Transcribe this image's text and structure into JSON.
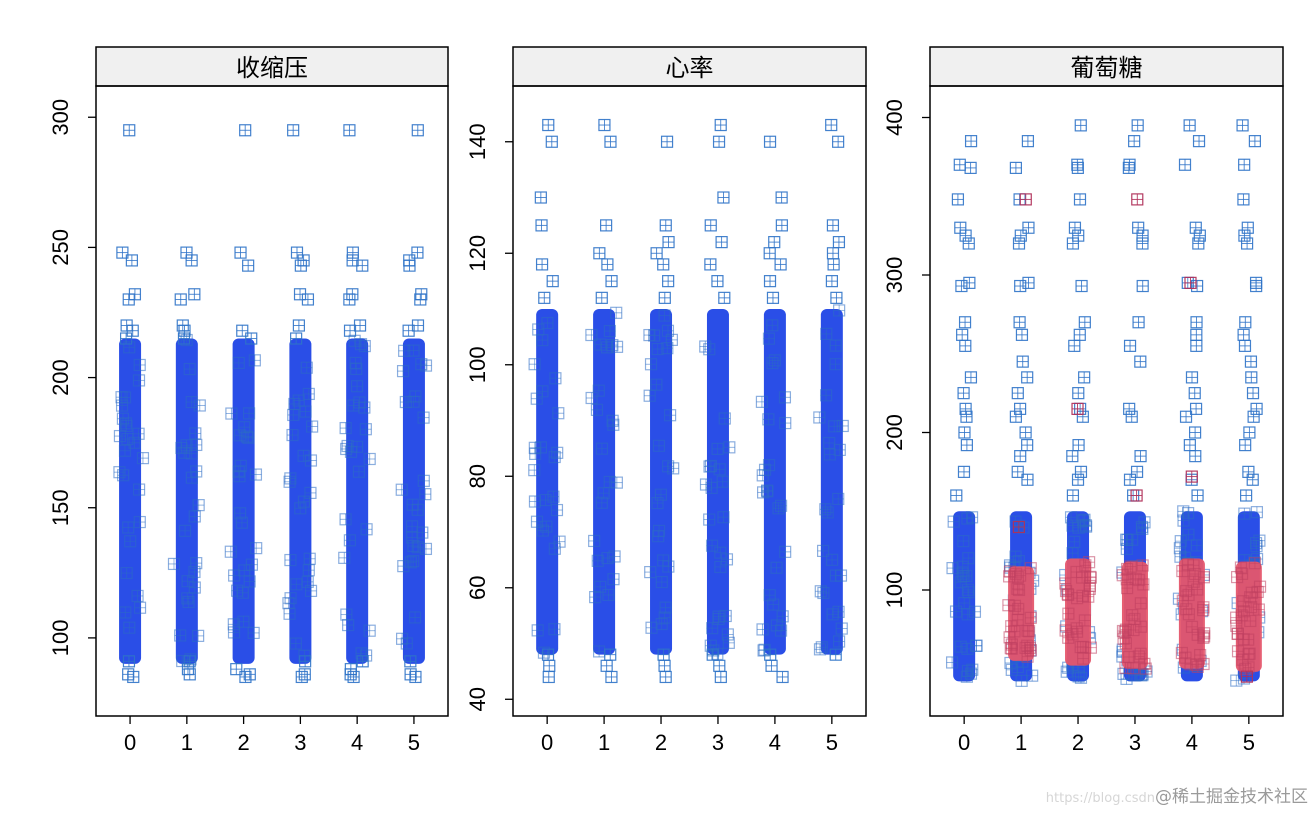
{
  "watermark": {
    "url_fragment": "https://blog.csdn",
    "text": "@稀土掘金技术社区"
  },
  "chart_data": [
    {
      "type": "scatter",
      "title": "收缩压",
      "x_ticks": [
        0,
        1,
        2,
        3,
        4,
        5
      ],
      "y_ticks": [
        100,
        150,
        200,
        250,
        300
      ],
      "xlim": [
        -0.6,
        5.6
      ],
      "ylim": [
        70,
        312
      ],
      "colors": [
        "#1f45e6"
      ],
      "series": [
        {
          "dense_ranges": [
            [
              90,
              215
            ]
          ],
          "outliers": [
            85,
            86,
            88,
            91,
            215,
            218,
            220,
            230,
            232,
            243,
            245,
            248,
            295
          ]
        }
      ]
    },
    {
      "type": "scatter",
      "title": "心率",
      "x_ticks": [
        0,
        1,
        2,
        3,
        4,
        5
      ],
      "y_ticks": [
        40,
        60,
        80,
        100,
        120,
        140
      ],
      "xlim": [
        -0.6,
        5.6
      ],
      "ylim": [
        37,
        150
      ],
      "colors": [
        "#1f45e6"
      ],
      "series": [
        {
          "dense_ranges": [
            [
              48,
              110
            ]
          ],
          "outliers": [
            44,
            46,
            48,
            112,
            115,
            118,
            120,
            122,
            125,
            130,
            140,
            143
          ]
        }
      ]
    },
    {
      "type": "scatter",
      "title": "葡萄糖",
      "x_ticks": [
        0,
        1,
        2,
        3,
        4,
        5
      ],
      "y_ticks": [
        100,
        200,
        300,
        400
      ],
      "xlim": [
        -0.6,
        5.6
      ],
      "ylim": [
        20,
        420
      ],
      "colors": [
        "#1f45e6",
        "#e5566b"
      ],
      "series": [
        {
          "dense_ranges": [
            [
              42,
              150
            ]
          ],
          "outliers": [
            160,
            170,
            175,
            185,
            192,
            200,
            210,
            215,
            225,
            235,
            245,
            255,
            262,
            270,
            293,
            295,
            320,
            325,
            330,
            348,
            368,
            370,
            385,
            395
          ]
        },
        {
          "dense_ranges_by_x": [
            null,
            [
              55,
              115
            ],
            [
              52,
              120
            ],
            [
              50,
              118
            ],
            [
              50,
              120
            ],
            [
              48,
              118
            ]
          ],
          "outliers": [
            [
              1,
              140
            ],
            [
              1,
              348
            ],
            [
              2,
              215
            ],
            [
              3,
              160
            ],
            [
              3,
              348
            ],
            [
              4,
              172
            ],
            [
              4,
              295
            ],
            [
              5,
              45
            ]
          ]
        }
      ]
    }
  ]
}
